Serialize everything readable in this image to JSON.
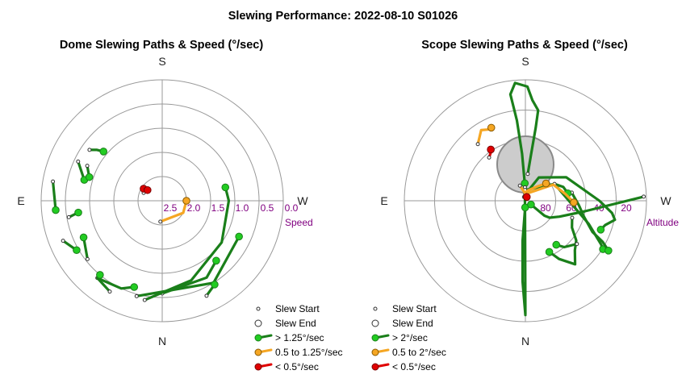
{
  "title": "Slewing Performance: 2022-08-10 S01026",
  "colors": {
    "fast": "#22cc22",
    "fast_edge": "#1a7f1a",
    "medium": "#f5a623",
    "slow": "#e00000",
    "tick": "#800080",
    "grid": "#999999",
    "zenith_fill": "#cccccc",
    "zenith_edge": "#8a8a8a"
  },
  "chart_data": [
    {
      "type": "polar",
      "title": "Dome Slewing Paths & Speed (°/sec)",
      "cardinal": {
        "top": "S",
        "left": "E",
        "right": "W",
        "bottom": "N"
      },
      "axis_label": "Speed",
      "rings": [
        "2.5",
        "2.0",
        "1.5",
        "1.0",
        "0.5",
        "0.0"
      ],
      "ring_values": [
        2.5,
        2.0,
        1.5,
        1.0,
        0.5,
        0.0
      ],
      "radial_range": [
        0,
        3.0
      ],
      "grid": true,
      "legend": {
        "placement": "bottom-right",
        "entries": [
          "Slew Start",
          "Slew End",
          "> 1.25°/sec",
          "0.5 to 1.25°/sec",
          "< 0.5°/sec"
        ]
      },
      "paths": [
        {
          "class": "medium",
          "points": [
            [
              175,
              0.52
            ],
            [
              240,
              0.6
            ],
            [
              270,
              0.6
            ]
          ]
        },
        {
          "class": "slow",
          "points": [
            [
              67,
              0.5
            ],
            [
              62,
              0.48
            ],
            [
              57,
              0.55
            ]
          ]
        },
        {
          "class": "slow",
          "points": [
            [
              55,
              0.5
            ],
            [
              54,
              0.45
            ]
          ]
        },
        {
          "class": "fast",
          "points": [
            [
              180,
              2.3
            ],
            [
              210,
              2.2
            ],
            [
              222,
              2.0
            ]
          ]
        },
        {
          "class": "fast",
          "points": [
            [
              170,
              2.5
            ],
            [
              200,
              2.1
            ],
            [
              235,
              1.8
            ],
            [
              270,
              1.65
            ],
            [
              282,
              1.6
            ]
          ]
        },
        {
          "class": "fast",
          "points": [
            [
              165,
              2.45
            ],
            [
              212,
              2.4
            ],
            [
              245,
              2.1
            ]
          ]
        },
        {
          "class": "fast",
          "points": [
            [
              140,
              2.5
            ],
            [
              155,
              2.4
            ],
            [
              162,
              2.25
            ]
          ]
        },
        {
          "class": "fast",
          "points": [
            [
              205,
              2.6
            ],
            [
              212,
              2.45
            ]
          ]
        },
        {
          "class": "fast",
          "points": [
            [
              150,
              2.6
            ],
            [
              140,
              2.5
            ],
            [
              140,
              2.4
            ]
          ]
        },
        {
          "class": "fast",
          "points": [
            [
              128,
              2.35
            ],
            [
              115,
              2.15
            ]
          ]
        },
        {
          "class": "fast",
          "points": [
            [
              100,
              2.35
            ],
            [
              98,
              2.1
            ]
          ]
        },
        {
          "class": "fast",
          "points": [
            [
              65,
              2.3
            ],
            [
              75,
              2.0
            ]
          ]
        },
        {
          "class": "fast",
          "points": [
            [
              65,
              2.05
            ],
            [
              72,
              1.9
            ]
          ]
        },
        {
          "class": "fast",
          "points": [
            [
              55,
              2.2
            ],
            [
              52,
              2.05
            ],
            [
              50,
              1.9
            ]
          ]
        },
        {
          "class": "fast",
          "points": [
            [
              112,
              2.65
            ],
            [
              120,
              2.45
            ]
          ]
        },
        {
          "class": "fast",
          "points": [
            [
              80,
              2.75
            ],
            [
              95,
              2.65
            ]
          ]
        }
      ]
    },
    {
      "type": "polar",
      "title": "Scope Slewing Paths & Speed (°/sec)",
      "cardinal": {
        "top": "S",
        "left": "E",
        "right": "W",
        "bottom": "N"
      },
      "axis_label": "Altitude",
      "rings": [
        "80",
        "60",
        "40",
        "20"
      ],
      "ring_values": [
        80,
        60,
        40,
        20
      ],
      "radial_range": [
        90,
        0
      ],
      "grid": true,
      "zenith_limit_region": {
        "azimuth": 0,
        "altitude": 63,
        "radius_deg": 21
      },
      "legend": {
        "placement": "bottom-right",
        "entries": [
          "Slew Start",
          "Slew End",
          "> 2°/sec",
          "0.5 to 2°/sec",
          "< 0.5°/sec"
        ]
      },
      "paths": [
        {
          "class": "fast",
          "points": [
            [
              355,
              70
            ],
            [
              353,
              55
            ],
            [
              352,
              35
            ],
            [
              352,
              22
            ],
            [
              356,
              15
            ],
            [
              359,
              5
            ],
            [
              5,
              2
            ],
            [
              8,
              10
            ],
            [
              6,
              30
            ],
            [
              4,
              55
            ],
            [
              2,
              77
            ]
          ]
        },
        {
          "class": "fast",
          "points": [
            [
              2,
              80
            ],
            [
              180,
              5
            ],
            [
              178,
              30
            ],
            [
              176,
              60
            ],
            [
              178,
              85
            ]
          ]
        },
        {
          "class": "fast",
          "points": [
            [
              272,
              2
            ],
            [
              260,
              45
            ],
            [
              245,
              62
            ],
            [
              235,
              68
            ],
            [
              232,
              72
            ],
            [
              236,
              85
            ]
          ]
        },
        {
          "class": "fast",
          "points": [
            [
              2,
              82
            ],
            [
              300,
              65
            ],
            [
              250,
              40
            ],
            [
              240,
              25
            ],
            [
              238,
              22
            ]
          ]
        },
        {
          "class": "fast",
          "points": [
            [
              280,
              55
            ],
            [
              265,
              50
            ],
            [
              255,
              45
            ],
            [
              245,
              35
            ],
            [
              242,
              25
            ],
            [
              239,
              18
            ]
          ]
        },
        {
          "class": "fast",
          "points": [
            [
              359,
              85
            ],
            [
              330,
              70
            ],
            [
              300,
              55
            ],
            [
              270,
              35
            ],
            [
              262,
              25
            ],
            [
              258,
              22
            ],
            [
              253,
              28
            ],
            [
              249,
              30
            ]
          ]
        },
        {
          "class": "fast",
          "points": [
            [
              300,
              65
            ],
            [
              290,
              60
            ],
            [
              280,
              58
            ]
          ]
        },
        {
          "class": "fast",
          "points": [
            [
              250,
              53
            ],
            [
              240,
              50
            ],
            [
              232,
              42
            ],
            [
              225,
              38
            ],
            [
              218,
              30
            ],
            [
              210,
              40
            ],
            [
              205,
              48
            ]
          ]
        },
        {
          "class": "fast",
          "points": [
            [
              230,
              40
            ],
            [
              220,
              45
            ],
            [
              215,
              50
            ]
          ]
        },
        {
          "class": "medium",
          "points": [
            [
              2,
              85
            ],
            [
              300,
              66
            ],
            [
              280,
              60
            ],
            [
              268,
              54
            ]
          ]
        },
        {
          "class": "medium",
          "points": [
            [
              20,
              78
            ],
            [
              5,
              84
            ],
            [
              345,
              82
            ],
            [
              320,
              76
            ],
            [
              310,
              70
            ]
          ]
        },
        {
          "class": "medium",
          "points": [
            [
              40,
              35
            ],
            [
              32,
              28
            ],
            [
              28,
              30
            ],
            [
              25,
              30
            ]
          ]
        },
        {
          "class": "slow",
          "points": [
            [
              40,
              48
            ],
            [
              36,
              46
            ],
            [
              34,
              44
            ]
          ]
        },
        {
          "class": "slow",
          "points": [
            [
              20,
              87
            ],
            [
              359,
              88
            ],
            [
              340,
              87
            ]
          ]
        }
      ]
    }
  ]
}
